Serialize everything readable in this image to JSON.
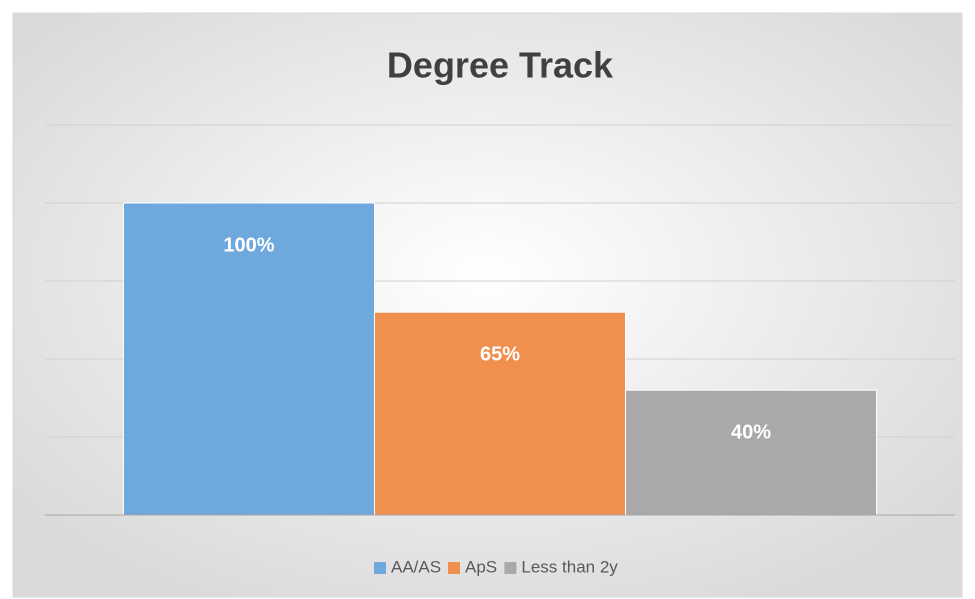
{
  "chart_data": {
    "type": "bar",
    "title": "Degree Track",
    "categories": [
      null
    ],
    "series": [
      {
        "name": "AA/AS",
        "color": "#6fa8dc",
        "values": [
          100
        ],
        "value_labels": [
          "100%"
        ]
      },
      {
        "name": "ApS",
        "color": "#f0904f",
        "values": [
          65
        ],
        "value_labels": [
          "65%"
        ]
      },
      {
        "name": "Less than 2y",
        "color": "#a9a9a9",
        "values": [
          40
        ],
        "value_labels": [
          "40%"
        ]
      }
    ],
    "ylim": [
      0,
      125
    ],
    "yticks": [
      0,
      25,
      50,
      75,
      100,
      125
    ],
    "grid": true,
    "legend": "bottom"
  }
}
